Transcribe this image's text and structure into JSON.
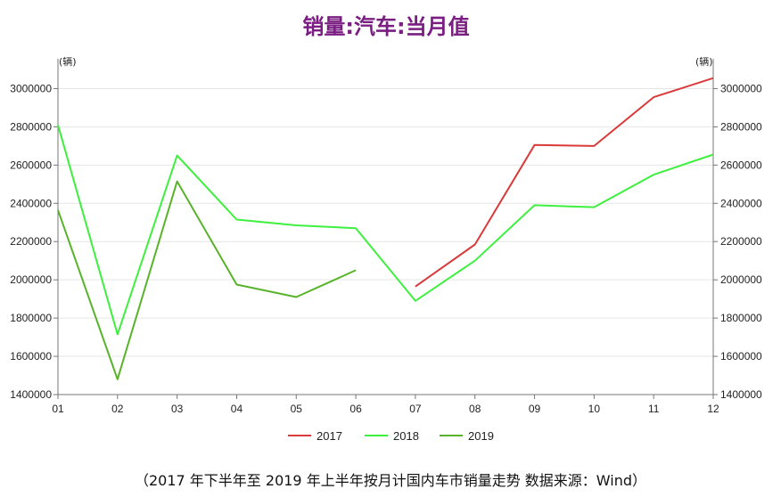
{
  "chart_data": {
    "type": "line",
    "title": "销量:汽车:当月值",
    "unit_left": "(辆)",
    "unit_right": "(辆)",
    "categories": [
      "01",
      "02",
      "03",
      "04",
      "05",
      "06",
      "07",
      "08",
      "09",
      "10",
      "11",
      "12"
    ],
    "ylim": [
      1400000,
      3100000
    ],
    "yticks": [
      1400000,
      1600000,
      1800000,
      2000000,
      2200000,
      2400000,
      2600000,
      2800000,
      3000000
    ],
    "grid": true,
    "legend_position": "bottom",
    "series": [
      {
        "name": "2017",
        "color": "#d93a3a",
        "values": [
          null,
          null,
          null,
          null,
          null,
          null,
          1965000,
          2185000,
          2705000,
          2700000,
          2955000,
          3055000
        ]
      },
      {
        "name": "2018",
        "color": "#3ef03e",
        "values": [
          2810000,
          1715000,
          2650000,
          2315000,
          2285000,
          2270000,
          1890000,
          2100000,
          2390000,
          2380000,
          2550000,
          2655000
        ]
      },
      {
        "name": "2019",
        "color": "#58b32a",
        "values": [
          2365000,
          1480000,
          2515000,
          1975000,
          1910000,
          2050000,
          null,
          null,
          null,
          null,
          null,
          null
        ]
      }
    ]
  },
  "caption": "（2017 年下半年至 2019 年上半年按月计国内车市销量走势  数据来源：Wind）"
}
